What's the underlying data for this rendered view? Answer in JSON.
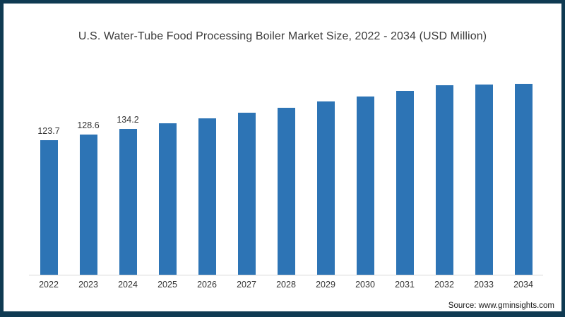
{
  "window": {
    "frame_color": "#0f3a52",
    "background": "#ffffff"
  },
  "chart": {
    "title": "U.S. Water-Tube Food Processing Boiler Market Size, 2022 - 2034 (USD Million)",
    "source": "Source: www.gminsights.com",
    "bar_color": "#2d74b5",
    "axis_line_color": "#d8d8d8",
    "text_color": "#333333"
  },
  "chart_data": {
    "type": "bar",
    "title": "U.S. Water-Tube Food Processing Boiler Market Size, 2022 - 2034 (USD Million)",
    "categories": [
      "2022",
      "2023",
      "2024",
      "2025",
      "2026",
      "2027",
      "2028",
      "2029",
      "2030",
      "2031",
      "2032",
      "2033",
      "2034"
    ],
    "values": [
      123.7,
      128.6,
      134.2,
      138.9,
      143.7,
      148.6,
      153.6,
      159.4,
      164.1,
      169.1,
      174.1,
      179.4,
      184.6
    ],
    "data_labels": [
      "123.7",
      "128.6",
      "134.2",
      "",
      "",
      "",
      "",
      "",
      "",
      "",
      "",
      "",
      ""
    ],
    "xlabel": "",
    "ylabel": "",
    "ylim": [
      0,
      200
    ],
    "grid": false,
    "legend": false,
    "source": "Source: www.gminsights.com"
  }
}
